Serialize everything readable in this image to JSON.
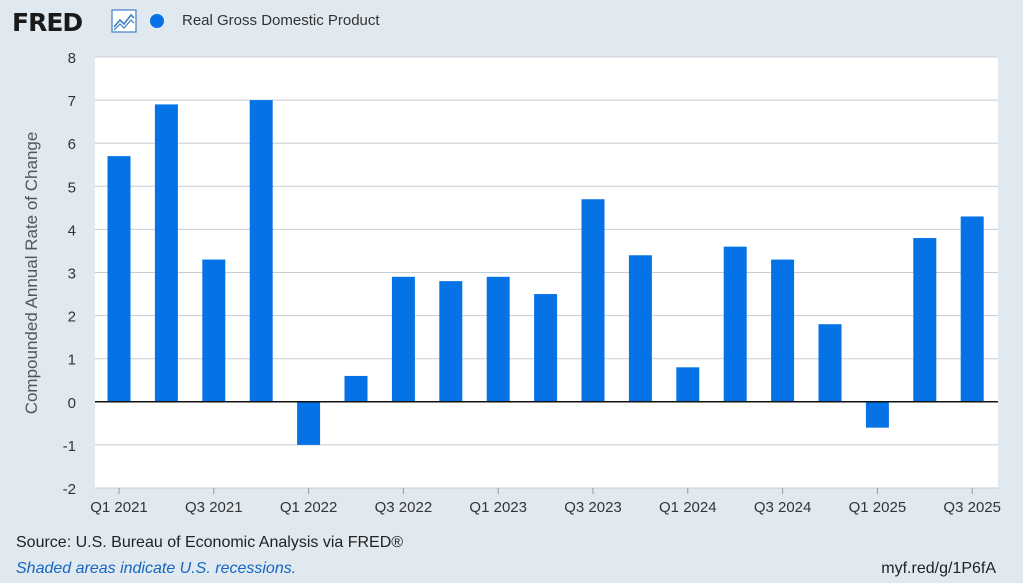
{
  "header": {
    "logo_text": "FRED",
    "logo_icon": "line-chart-icon"
  },
  "legend": {
    "label": "Real Gross Domestic Product",
    "color": "#0572e6"
  },
  "footer": {
    "source": "Source: U.S. Bureau of Economic Analysis via FRED®",
    "recession_note": "Shaded areas indicate U.S. recessions.",
    "short_url": "myf.red/g/1P6fA"
  },
  "chart_data": {
    "type": "bar",
    "title": "",
    "xlabel": "",
    "ylabel": "Compounded Annual Rate of Change",
    "ylim": [
      -2,
      8
    ],
    "yticks": [
      8,
      7,
      6,
      5,
      4,
      3,
      2,
      1,
      0,
      -1,
      -2
    ],
    "grid": true,
    "legend_position": "top-left",
    "series": [
      {
        "name": "Real Gross Domestic Product",
        "color": "#0572e6",
        "categories": [
          "Q1 2021",
          "Q2 2021",
          "Q3 2021",
          "Q4 2021",
          "Q1 2022",
          "Q2 2022",
          "Q3 2022",
          "Q4 2022",
          "Q1 2023",
          "Q2 2023",
          "Q3 2023",
          "Q4 2023",
          "Q1 2024",
          "Q2 2024",
          "Q3 2024",
          "Q4 2024",
          "Q1 2025",
          "Q2 2025",
          "Q3 2025"
        ],
        "values": [
          5.7,
          6.9,
          3.3,
          7.0,
          -1.0,
          0.6,
          2.9,
          2.8,
          2.9,
          2.5,
          4.7,
          3.4,
          0.8,
          3.6,
          3.3,
          1.8,
          -0.6,
          3.8,
          4.3
        ]
      }
    ],
    "xtick_labels": [
      "Q1 2021",
      "Q3 2021",
      "Q1 2022",
      "Q3 2022",
      "Q1 2023",
      "Q3 2023",
      "Q1 2024",
      "Q3 2024",
      "Q1 2025",
      "Q3 2025"
    ]
  }
}
